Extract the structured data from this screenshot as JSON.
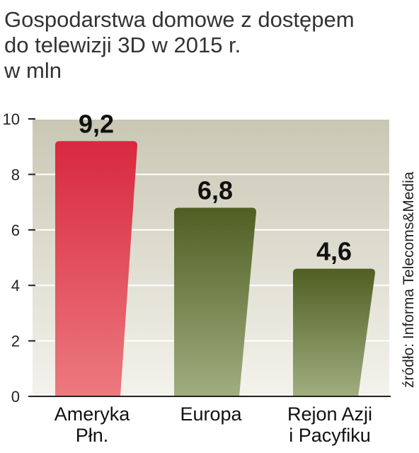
{
  "header": {
    "title_line1": "Gospodarstwa domowe z dostępem",
    "title_line2": "do telewizji 3D w 2015 r.",
    "unit": "w mln"
  },
  "source": "źródło: Informa Telecoms&Media",
  "colors": {
    "bar_red_top": "#d8283f",
    "bar_red_bottom": "#ec7a7e",
    "bar_olive_top": "#4f5f22",
    "bar_olive_bottom": "#a0ae80",
    "panel_top": "#c9c7b4",
    "panel_bottom": "#f4f3ec"
  },
  "chart_data": {
    "type": "bar",
    "title": "Gospodarstwa domowe z dostępem do telewizji 3D w 2015 r.",
    "ylabel": "w mln",
    "xlabel": "",
    "ylim": [
      0,
      10
    ],
    "yticks": [
      0,
      2,
      4,
      6,
      8,
      10
    ],
    "grid": true,
    "categories": [
      [
        "Ameryka",
        "Płn."
      ],
      [
        "Europa"
      ],
      [
        "Rejon Azji",
        "i Pacyfiku"
      ]
    ],
    "values": [
      9.2,
      6.8,
      4.6
    ],
    "value_labels": [
      "9,2",
      "6,8",
      "4,6"
    ],
    "bar_colors": [
      "red",
      "olive",
      "olive"
    ]
  }
}
